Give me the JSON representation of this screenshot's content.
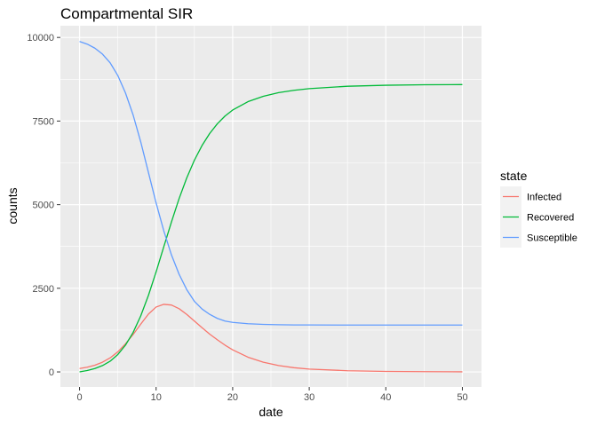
{
  "chart_data": {
    "type": "line",
    "title": "Compartmental SIR",
    "xlabel": "date",
    "ylabel": "counts",
    "xlim": [
      -2.5,
      52.5
    ],
    "ylim": [
      -450,
      10350
    ],
    "x_ticks": [
      0,
      10,
      20,
      30,
      40,
      50
    ],
    "y_ticks": [
      0,
      2500,
      5000,
      7500,
      10000
    ],
    "grid": true,
    "legend_title": "state",
    "legend_position": "right",
    "x": [
      0,
      1,
      2,
      3,
      4,
      5,
      6,
      7,
      8,
      9,
      10,
      11,
      12,
      13,
      14,
      15,
      16,
      17,
      18,
      19,
      20,
      22,
      24,
      26,
      28,
      30,
      35,
      40,
      45,
      50
    ],
    "series": [
      {
        "name": "Infected",
        "color": "#F8766D",
        "values": [
          100,
          140,
          200,
          290,
          420,
          600,
          840,
          1120,
          1430,
          1730,
          1940,
          2020,
          2000,
          1890,
          1720,
          1520,
          1320,
          1130,
          960,
          800,
          660,
          440,
          290,
          190,
          125,
          85,
          35,
          15,
          7,
          3
        ]
      },
      {
        "name": "Recovered",
        "color": "#00BA38",
        "values": [
          0,
          40,
          100,
          190,
          320,
          520,
          800,
          1180,
          1680,
          2290,
          2990,
          3740,
          4480,
          5180,
          5800,
          6330,
          6770,
          7130,
          7420,
          7650,
          7830,
          8080,
          8240,
          8350,
          8420,
          8470,
          8540,
          8570,
          8585,
          8590
        ]
      },
      {
        "name": "Susceptible",
        "color": "#619CFF",
        "values": [
          9880,
          9800,
          9680,
          9500,
          9240,
          8860,
          8340,
          7680,
          6870,
          5960,
          5050,
          4220,
          3500,
          2920,
          2460,
          2110,
          1880,
          1720,
          1600,
          1520,
          1480,
          1440,
          1420,
          1410,
          1405,
          1405,
          1400,
          1400,
          1400,
          1400
        ]
      }
    ]
  }
}
